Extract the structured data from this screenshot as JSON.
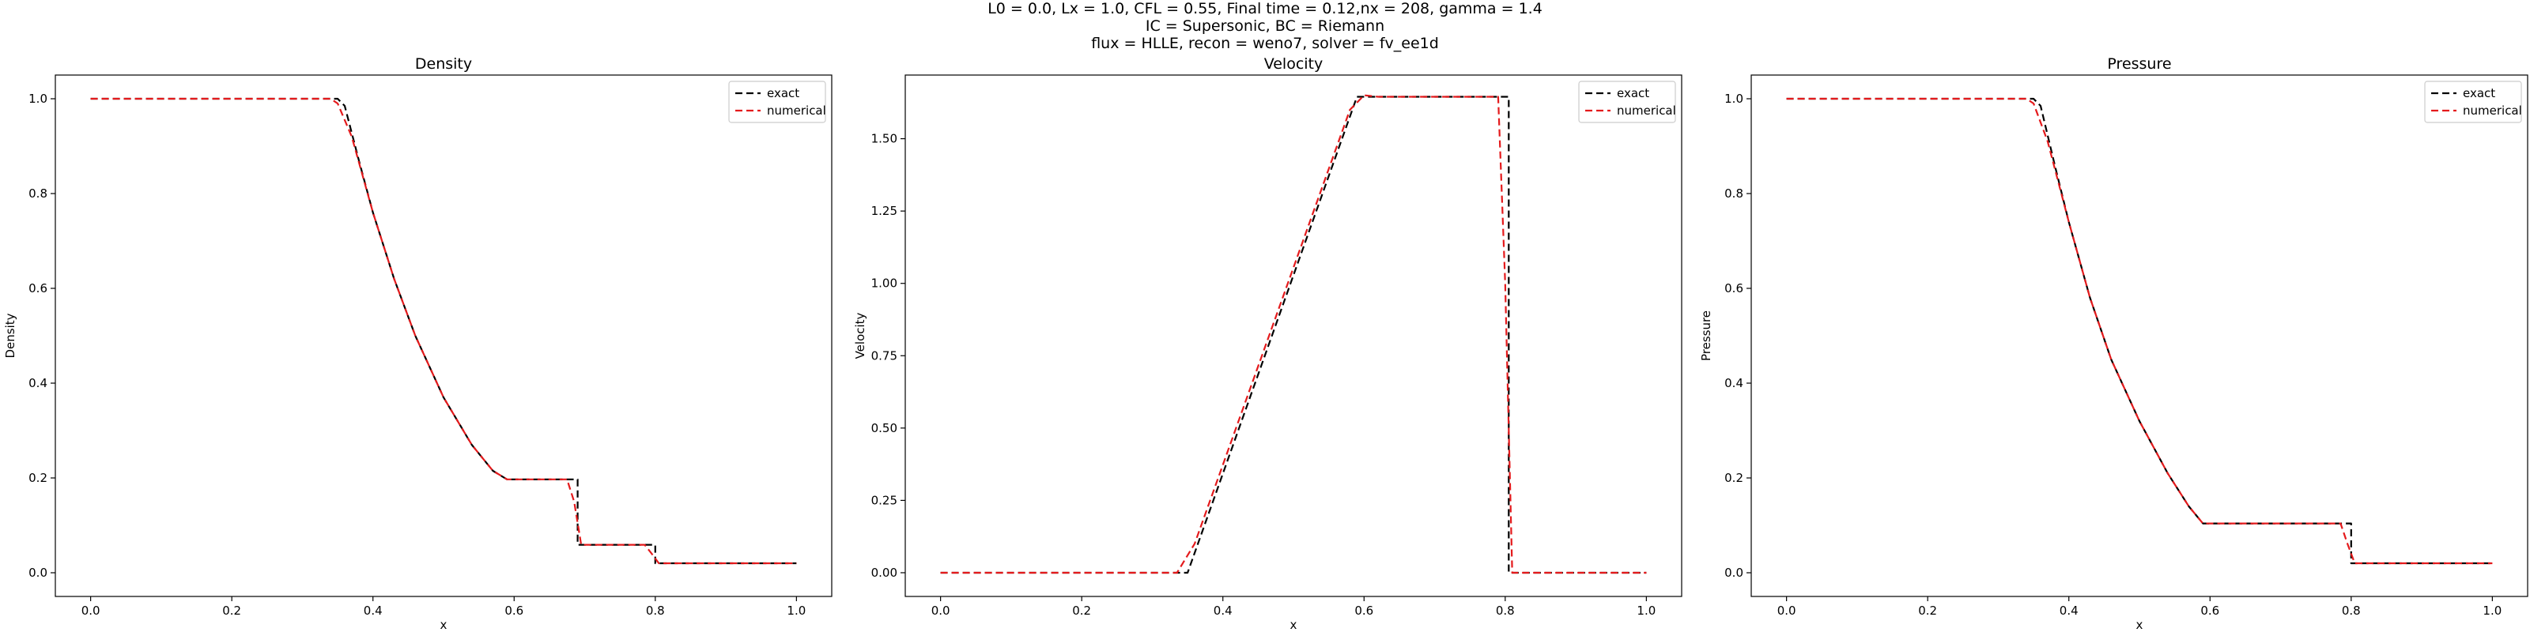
{
  "figure": {
    "suptitle_lines": [
      "L0 = 0.0, Lx = 1.0, CFL = 0.55, Final time = 0.12,nx = 208, gamma = 1.4",
      "IC = Supersonic, BC = Riemann",
      "flux = HLLE, recon = weno7, solver = fv_ee1d"
    ]
  },
  "colors": {
    "exact": "#000000",
    "numerical": "#e41a1c"
  },
  "chart_data": [
    {
      "type": "line",
      "title": "Density",
      "xlabel": "x",
      "ylabel": "Density",
      "xlim": [
        -0.05,
        1.05
      ],
      "ylim": [
        -0.05,
        1.05
      ],
      "xticks": [
        0.0,
        0.2,
        0.4,
        0.6,
        0.8,
        1.0
      ],
      "xtick_labels": [
        "0.0",
        "0.2",
        "0.4",
        "0.6",
        "0.8",
        "1.0"
      ],
      "yticks": [
        0.0,
        0.2,
        0.4,
        0.6,
        0.8,
        1.0
      ],
      "ytick_labels": [
        "0.0",
        "0.2",
        "0.4",
        "0.6",
        "0.8",
        "1.0"
      ],
      "legend_position": "top-right",
      "series": [
        {
          "name": "exact",
          "style": "dashed",
          "x": [
            0.0,
            0.35,
            0.36,
            0.38,
            0.4,
            0.43,
            0.46,
            0.5,
            0.54,
            0.57,
            0.59,
            0.69,
            0.69,
            0.8,
            0.8,
            1.0
          ],
          "y": [
            1.0,
            1.0,
            0.985,
            0.87,
            0.76,
            0.62,
            0.5,
            0.37,
            0.27,
            0.215,
            0.197,
            0.197,
            0.059,
            0.059,
            0.02,
            0.02
          ]
        },
        {
          "name": "numerical",
          "style": "dashed",
          "x": [
            0.0,
            0.34,
            0.35,
            0.37,
            0.4,
            0.43,
            0.46,
            0.5,
            0.54,
            0.57,
            0.59,
            0.675,
            0.685,
            0.695,
            0.785,
            0.795,
            0.805,
            1.0
          ],
          "y": [
            1.0,
            1.0,
            0.99,
            0.92,
            0.76,
            0.62,
            0.5,
            0.37,
            0.27,
            0.215,
            0.197,
            0.197,
            0.15,
            0.059,
            0.059,
            0.04,
            0.02,
            0.02
          ]
        }
      ]
    },
    {
      "type": "line",
      "title": "Velocity",
      "xlabel": "x",
      "ylabel": "Velocity",
      "xlim": [
        -0.05,
        1.05
      ],
      "ylim": [
        -0.082,
        1.72
      ],
      "xticks": [
        0.0,
        0.2,
        0.4,
        0.6,
        0.8,
        1.0
      ],
      "xtick_labels": [
        "0.0",
        "0.2",
        "0.4",
        "0.6",
        "0.8",
        "1.0"
      ],
      "yticks": [
        0.0,
        0.25,
        0.5,
        0.75,
        1.0,
        1.25,
        1.5
      ],
      "ytick_labels": [
        "0.00",
        "0.25",
        "0.50",
        "0.75",
        "1.00",
        "1.25",
        "1.50"
      ],
      "legend_position": "top-right",
      "series": [
        {
          "name": "exact",
          "style": "dashed",
          "x": [
            0.0,
            0.35,
            0.59,
            0.805,
            0.805,
            1.0
          ],
          "y": [
            0.0,
            0.0,
            1.645,
            1.645,
            0.0,
            0.0
          ]
        },
        {
          "name": "numerical",
          "style": "dashed",
          "x": [
            0.0,
            0.335,
            0.36,
            0.58,
            0.6,
            0.62,
            0.79,
            0.8,
            0.81,
            1.0
          ],
          "y": [
            0.0,
            0.0,
            0.1,
            1.6,
            1.65,
            1.645,
            1.645,
            1.0,
            0.0,
            0.0
          ]
        }
      ]
    },
    {
      "type": "line",
      "title": "Pressure",
      "xlabel": "x",
      "ylabel": "Pressure",
      "xlim": [
        -0.05,
        1.05
      ],
      "ylim": [
        -0.05,
        1.05
      ],
      "xticks": [
        0.0,
        0.2,
        0.4,
        0.6,
        0.8,
        1.0
      ],
      "xtick_labels": [
        "0.0",
        "0.2",
        "0.4",
        "0.6",
        "0.8",
        "1.0"
      ],
      "yticks": [
        0.0,
        0.2,
        0.4,
        0.6,
        0.8,
        1.0
      ],
      "ytick_labels": [
        "0.0",
        "0.2",
        "0.4",
        "0.6",
        "0.8",
        "1.0"
      ],
      "legend_position": "top-right",
      "series": [
        {
          "name": "exact",
          "style": "dashed",
          "x": [
            0.0,
            0.35,
            0.36,
            0.38,
            0.4,
            0.43,
            0.46,
            0.5,
            0.54,
            0.57,
            0.59,
            0.8,
            0.8,
            1.0
          ],
          "y": [
            1.0,
            1.0,
            0.985,
            0.86,
            0.74,
            0.58,
            0.45,
            0.32,
            0.21,
            0.14,
            0.104,
            0.104,
            0.02,
            0.02
          ]
        },
        {
          "name": "numerical",
          "style": "dashed",
          "x": [
            0.0,
            0.34,
            0.35,
            0.37,
            0.4,
            0.43,
            0.46,
            0.5,
            0.54,
            0.57,
            0.59,
            0.785,
            0.795,
            0.805,
            1.0
          ],
          "y": [
            1.0,
            1.0,
            0.99,
            0.91,
            0.74,
            0.58,
            0.45,
            0.32,
            0.21,
            0.14,
            0.104,
            0.104,
            0.06,
            0.02,
            0.02
          ]
        }
      ]
    }
  ]
}
